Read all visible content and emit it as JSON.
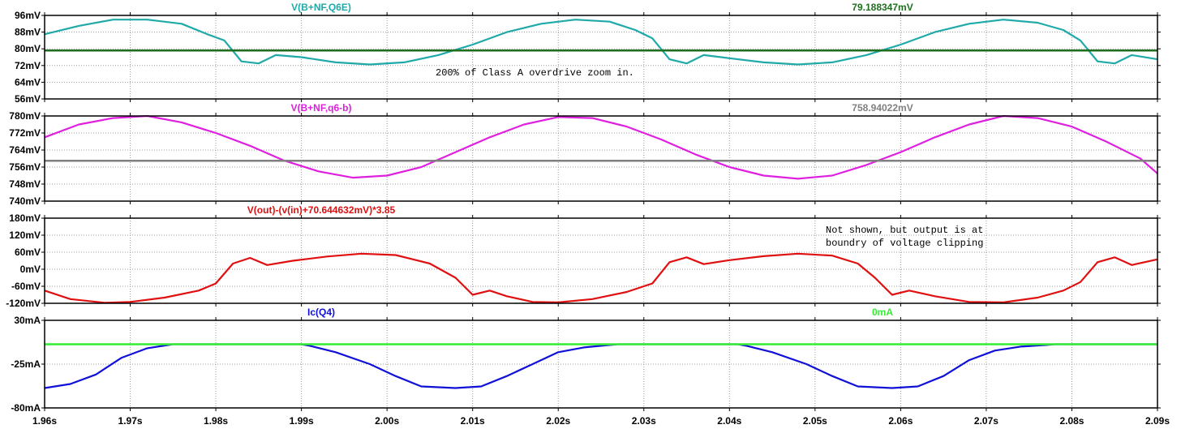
{
  "chart_data": {
    "type": "line",
    "x_range": [
      1.96,
      2.09
    ],
    "x_ticks": [
      "1.96s",
      "1.97s",
      "1.98s",
      "1.99s",
      "2.00s",
      "2.01s",
      "2.02s",
      "2.03s",
      "2.04s",
      "2.05s",
      "2.06s",
      "2.07s",
      "2.08s",
      "2.09s"
    ],
    "x_tick_values": [
      1.96,
      1.97,
      1.98,
      1.99,
      2.0,
      2.01,
      2.02,
      2.03,
      2.04,
      2.05,
      2.06,
      2.07,
      2.08,
      2.09
    ],
    "grid": true,
    "panes": [
      {
        "id": "pane1",
        "ylim": [
          56,
          96
        ],
        "y_ticks": [
          "96mV",
          "88mV",
          "80mV",
          "72mV",
          "64mV",
          "56mV"
        ],
        "y_tick_values": [
          96,
          88,
          80,
          72,
          64,
          56
        ],
        "series": [
          {
            "name": "V(B+NF,Q6E)",
            "color": "#1fa9a9",
            "x": [
              1.96,
              1.964,
              1.968,
              1.972,
              1.976,
              1.979,
              1.981,
              1.983,
              1.985,
              1.987,
              1.99,
              1.994,
              1.998,
              2.002,
              2.006,
              2.01,
              2.014,
              2.018,
              2.022,
              2.026,
              2.029,
              2.031,
              2.033,
              2.035,
              2.037,
              2.04,
              2.044,
              2.048,
              2.052,
              2.056,
              2.06,
              2.064,
              2.068,
              2.072,
              2.076,
              2.079,
              2.081,
              2.083,
              2.085,
              2.087,
              2.09
            ],
            "y": [
              87,
              91,
              94,
              94,
              92,
              87,
              84,
              74,
              73,
              77,
              76,
              73.5,
              72.5,
              73.5,
              77,
              82,
              88,
              92,
              94,
              93,
              89,
              85,
              75,
              73,
              77,
              75.5,
              73.5,
              72.5,
              73.5,
              77,
              82,
              88,
              92,
              94,
              92.5,
              89,
              84,
              74,
              73,
              77,
              75
            ]
          },
          {
            "name": "79.188347mV",
            "color": "#1e6e1e",
            "x": [
              1.96,
              2.09
            ],
            "y": [
              79.188347,
              79.188347
            ]
          }
        ],
        "annotations": [
          "200% of Class A overdrive zoom in."
        ]
      },
      {
        "id": "pane2",
        "ylim": [
          740,
          780
        ],
        "y_ticks": [
          "780mV",
          "772mV",
          "764mV",
          "756mV",
          "748mV",
          "740mV"
        ],
        "y_tick_values": [
          780,
          772,
          764,
          756,
          748,
          740
        ],
        "series": [
          {
            "name": "V(B+NF,q6-b)",
            "color": "#e020e0",
            "x": [
              1.96,
              1.964,
              1.968,
              1.972,
              1.976,
              1.98,
              1.984,
              1.988,
              1.992,
              1.996,
              2.0,
              2.004,
              2.008,
              2.012,
              2.016,
              2.02,
              2.024,
              2.028,
              2.032,
              2.036,
              2.04,
              2.044,
              2.048,
              2.052,
              2.056,
              2.06,
              2.064,
              2.068,
              2.072,
              2.076,
              2.08,
              2.084,
              2.088,
              2.09
            ],
            "y": [
              770,
              776,
              779,
              780,
              777,
              772,
              766,
              759,
              754,
              751,
              752,
              756,
              763,
              770,
              776,
              779.5,
              779,
              775,
              769,
              762,
              756,
              752,
              750.5,
              752,
              757,
              763,
              770,
              776,
              780,
              779,
              775,
              768,
              760,
              753
            ]
          },
          {
            "name": "758.94022mV",
            "color": "#808080",
            "x": [
              1.96,
              2.09
            ],
            "y": [
              758.94022,
              758.94022
            ]
          }
        ],
        "annotations": []
      },
      {
        "id": "pane3",
        "ylim": [
          -120,
          180
        ],
        "y_ticks": [
          "180mV",
          "120mV",
          "60mV",
          "0mV",
          "-60mV",
          "-120mV"
        ],
        "y_tick_values": [
          180,
          120,
          60,
          0,
          -60,
          -120
        ],
        "series": [
          {
            "name": "V(out)-(v(in)+70.644632mV)*3.85",
            "color": "#e01010",
            "x": [
              1.96,
              1.963,
              1.967,
              1.97,
              1.974,
              1.978,
              1.98,
              1.982,
              1.984,
              1.986,
              1.989,
              1.993,
              1.997,
              2.001,
              2.005,
              2.008,
              2.01,
              2.012,
              2.014,
              2.017,
              2.02,
              2.024,
              2.028,
              2.031,
              2.033,
              2.035,
              2.037,
              2.04,
              2.044,
              2.048,
              2.052,
              2.055,
              2.057,
              2.059,
              2.061,
              2.064,
              2.068,
              2.072,
              2.076,
              2.079,
              2.081,
              2.083,
              2.085,
              2.087,
              2.09
            ],
            "y": [
              -75,
              -105,
              -118,
              -115,
              -100,
              -75,
              -50,
              20,
              40,
              15,
              30,
              45,
              55,
              50,
              20,
              -30,
              -90,
              -75,
              -95,
              -115,
              -117,
              -105,
              -80,
              -50,
              25,
              42,
              18,
              32,
              46,
              55,
              48,
              20,
              -30,
              -90,
              -75,
              -95,
              -115,
              -117,
              -100,
              -75,
              -45,
              25,
              42,
              15,
              35
            ]
          }
        ],
        "annotations": [
          "Not shown, but output is at",
          "boundry of voltage clipping"
        ]
      },
      {
        "id": "pane4",
        "ylim": [
          -80,
          30
        ],
        "y_ticks": [
          "30mA",
          "-25mA",
          "-80mA"
        ],
        "y_tick_values": [
          30,
          -25,
          -80
        ],
        "series": [
          {
            "name": "Ic(Q4)",
            "color": "#1010d8",
            "x": [
              1.96,
              1.963,
              1.966,
              1.969,
              1.972,
              1.975,
              1.976,
              1.99,
              1.991,
              1.994,
              1.998,
              2.001,
              2.004,
              2.008,
              2.011,
              2.014,
              2.017,
              2.02,
              2.023,
              2.026,
              2.027,
              2.041,
              2.042,
              2.045,
              2.049,
              2.052,
              2.055,
              2.059,
              2.062,
              2.065,
              2.068,
              2.071,
              2.074,
              2.077,
              2.078,
              2.09
            ],
            "y": [
              -55,
              -50,
              -38,
              -17,
              -5,
              0,
              0,
              0,
              -2,
              -10,
              -25,
              -40,
              -53,
              -55,
              -53,
              -40,
              -25,
              -10,
              -4,
              -1,
              0,
              0,
              -2,
              -10,
              -25,
              -40,
              -53,
              -55,
              -53,
              -40,
              -20,
              -8,
              -3,
              -1,
              0,
              0
            ]
          },
          {
            "name": "0mA",
            "color": "#33ee33",
            "x": [
              1.96,
              2.09
            ],
            "y": [
              0,
              0
            ]
          }
        ],
        "annotations": []
      }
    ]
  }
}
